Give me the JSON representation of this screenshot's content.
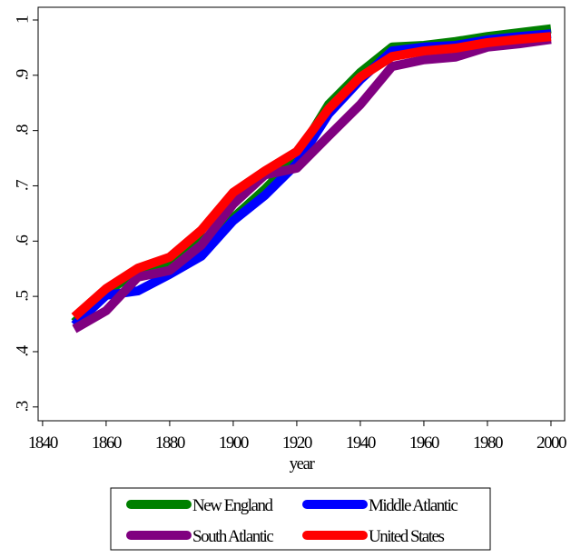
{
  "chart_data": {
    "type": "line",
    "x_label": "year",
    "x": [
      1850,
      1860,
      1870,
      1880,
      1890,
      1900,
      1910,
      1920,
      1930,
      1940,
      1950,
      1960,
      1970,
      1980,
      1990,
      2000
    ],
    "series": [
      {
        "name": "New England",
        "color": "#008000",
        "values": [
          0.453,
          0.507,
          0.547,
          0.563,
          0.6,
          0.642,
          0.694,
          0.753,
          0.847,
          0.905,
          0.951,
          0.954,
          0.961,
          0.97,
          0.977,
          0.984
        ]
      },
      {
        "name": "Middle Atlantic",
        "color": "#0000ff",
        "values": [
          0.448,
          0.502,
          0.51,
          0.54,
          0.573,
          0.637,
          0.683,
          0.74,
          0.83,
          0.892,
          0.944,
          0.951,
          0.954,
          0.964,
          0.97,
          0.975
        ]
      },
      {
        "name": "South Atlantic",
        "color": "#800080",
        "values": [
          0.441,
          0.474,
          0.535,
          0.547,
          0.593,
          0.667,
          0.72,
          0.732,
          0.79,
          0.847,
          0.916,
          0.928,
          0.933,
          0.951,
          0.957,
          0.965
        ]
      },
      {
        "name": "United States",
        "color": "#ff0000",
        "values": [
          0.463,
          0.514,
          0.551,
          0.571,
          0.62,
          0.688,
          0.727,
          0.762,
          0.839,
          0.897,
          0.934,
          0.944,
          0.949,
          0.959,
          0.965,
          0.97
        ]
      }
    ],
    "xlim": [
      1838.6,
      2004.3
    ],
    "xticks": [
      1840,
      1860,
      1880,
      1900,
      1920,
      1940,
      1960,
      1980,
      2000
    ],
    "ylim": [
      0.275,
      1.023
    ],
    "yticks": [
      {
        "value": 0.3,
        "label": ".3"
      },
      {
        "value": 0.4,
        "label": ".4"
      },
      {
        "value": 0.5,
        "label": ".5"
      },
      {
        "value": 0.6,
        "label": ".6"
      },
      {
        "value": 0.7,
        "label": ".7"
      },
      {
        "value": 0.8,
        "label": ".8"
      },
      {
        "value": 0.9,
        "label": ".9"
      },
      1
    ],
    "line_width": 10
  }
}
